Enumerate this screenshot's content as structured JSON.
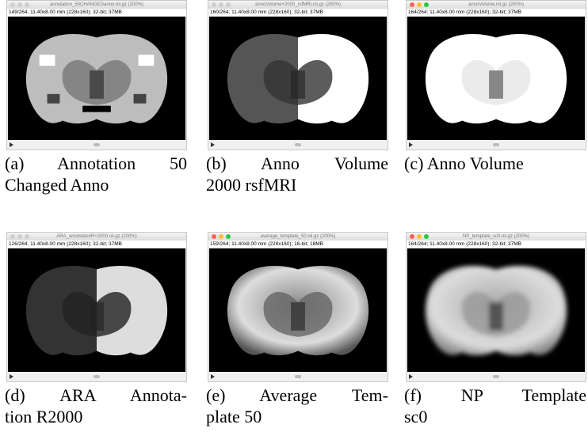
{
  "panels": [
    {
      "title": "annotation_50CHANGEDanno.nii.gz (200%)",
      "info": "149/264; 11.40x8.00 mm (228x160); 32-bit; 37MB",
      "caption": [
        "(a) Annotation 50",
        "Changed Anno"
      ]
    },
    {
      "title": "annoVolume+2000_rsfMRI.nii.gz (200%)",
      "info": "160/264; 11.40x8.00 mm (228x160); 32-bit; 37MB",
      "caption": [
        "(b) Anno Volume",
        "2000 rsfMRI"
      ]
    },
    {
      "title": "annoVolume.nii.gz (200%)",
      "info": "164/264; 11.40x8.00 mm (228x160); 32-bit; 37MB",
      "caption": [
        "(c) Anno Volume"
      ]
    },
    {
      "title": "ARA_annotationR+2000.nii.gz (200%)",
      "info": "126/264; 11.40x8.00 mm (228x160); 32-bit; 37MB",
      "caption": [
        "(d) ARA Annota-",
        "tion R2000"
      ]
    },
    {
      "title": "average_template_50.nii.gz (200%)",
      "info": "159/264; 11.40x8.00 mm (228x160); 16-bit; 18MB",
      "caption": [
        "(e) Average Tem-",
        "plate 50"
      ]
    },
    {
      "title": "NP_template_sc0.nii.gz (200%)",
      "info": "164/264; 11.40x8.00 mm (228x160); 32-bit; 37MB",
      "caption": [
        "(f) NP Template",
        "sc0"
      ]
    }
  ]
}
